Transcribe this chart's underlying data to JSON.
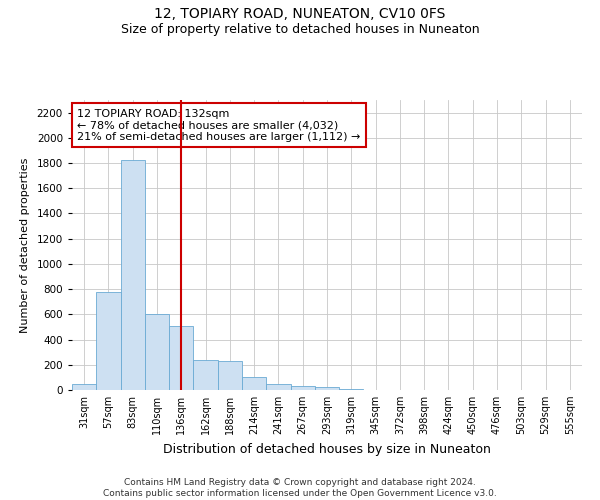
{
  "title": "12, TOPIARY ROAD, NUNEATON, CV10 0FS",
  "subtitle": "Size of property relative to detached houses in Nuneaton",
  "xlabel": "Distribution of detached houses by size in Nuneaton",
  "ylabel": "Number of detached properties",
  "categories": [
    "31sqm",
    "57sqm",
    "83sqm",
    "110sqm",
    "136sqm",
    "162sqm",
    "188sqm",
    "214sqm",
    "241sqm",
    "267sqm",
    "293sqm",
    "319sqm",
    "345sqm",
    "372sqm",
    "398sqm",
    "424sqm",
    "450sqm",
    "476sqm",
    "503sqm",
    "529sqm",
    "555sqm"
  ],
  "values": [
    50,
    775,
    1825,
    600,
    510,
    235,
    230,
    105,
    50,
    30,
    20,
    5,
    2,
    1,
    0,
    0,
    0,
    0,
    0,
    0,
    0
  ],
  "bar_color": "#cde0f2",
  "bar_edge_color": "#6aaad4",
  "vline_x_index": 4,
  "vline_color": "#cc0000",
  "annotation_text": "12 TOPIARY ROAD: 132sqm\n← 78% of detached houses are smaller (4,032)\n21% of semi-detached houses are larger (1,112) →",
  "annotation_box_color": "#ffffff",
  "annotation_box_edge": "#cc0000",
  "ylim": [
    0,
    2300
  ],
  "yticks": [
    0,
    200,
    400,
    600,
    800,
    1000,
    1200,
    1400,
    1600,
    1800,
    2000,
    2200
  ],
  "footnote": "Contains HM Land Registry data © Crown copyright and database right 2024.\nContains public sector information licensed under the Open Government Licence v3.0.",
  "background_color": "#ffffff",
  "grid_color": "#c8c8c8",
  "title_fontsize": 10,
  "subtitle_fontsize": 9
}
